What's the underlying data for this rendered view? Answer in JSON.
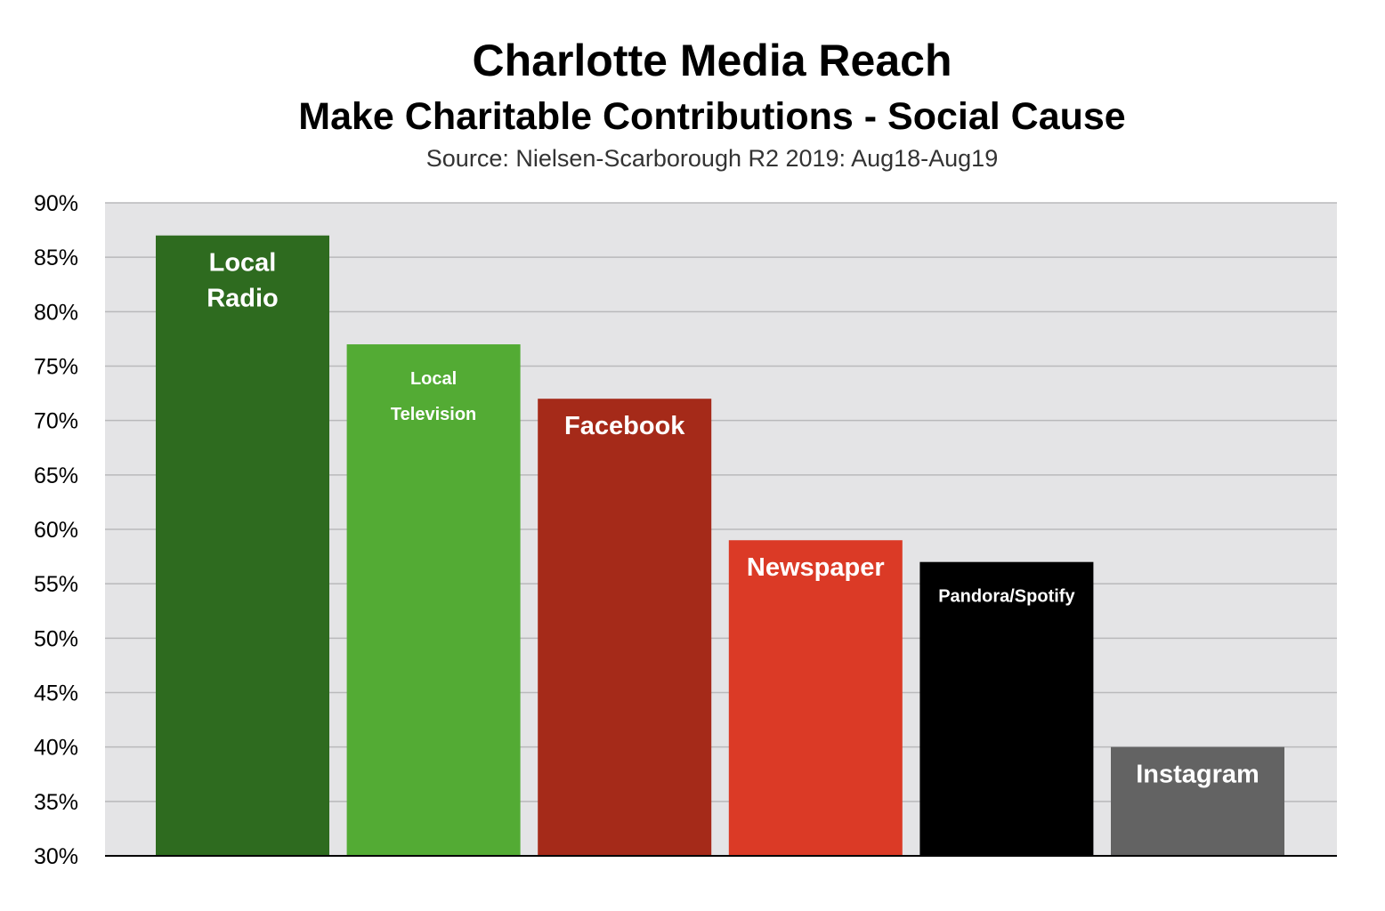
{
  "chart_data": {
    "type": "bar",
    "title": "Charlotte Media Reach",
    "subtitle": "Make Charitable Contributions - Social Cause",
    "source": "Source: Nielsen-Scarborough R2 2019: Aug18-Aug19",
    "xlabel": "",
    "ylabel": "",
    "ylim": [
      30,
      90
    ],
    "yticks": [
      30,
      35,
      40,
      45,
      50,
      55,
      60,
      65,
      70,
      75,
      80,
      85,
      90
    ],
    "ytick_suffix": "%",
    "grid": true,
    "categories": [
      {
        "label_lines": [
          "Local",
          "Radio"
        ],
        "value": 87,
        "color": "#2e6b1f"
      },
      {
        "label_lines": [
          "Local",
          "Television"
        ],
        "value": 77,
        "color": "#53ab34"
      },
      {
        "label_lines": [
          "Facebook"
        ],
        "value": 72,
        "color": "#a52a19"
      },
      {
        "label_lines": [
          "Newspaper"
        ],
        "value": 59,
        "color": "#db3a26"
      },
      {
        "label_lines": [
          "Pandora/Spotify"
        ],
        "value": 57,
        "color": "#000000"
      },
      {
        "label_lines": [
          "Instagram"
        ],
        "value": 40,
        "color": "#636363"
      }
    ]
  }
}
